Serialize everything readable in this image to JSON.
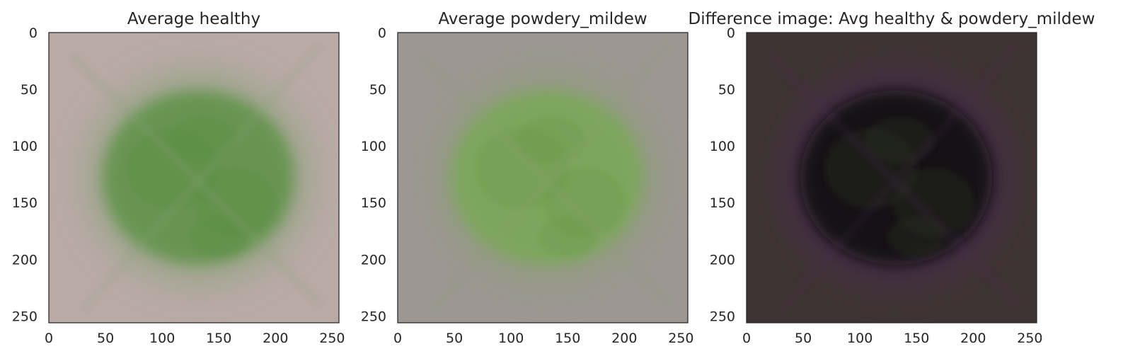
{
  "chart_data": [
    {
      "type": "image",
      "title": "Average healthy",
      "xlim": [
        0,
        256
      ],
      "ylim": [
        256,
        0
      ],
      "xticks": [
        0,
        50,
        100,
        150,
        200,
        250
      ],
      "yticks": [
        0,
        50,
        100,
        150,
        200,
        250
      ],
      "grid": false,
      "colors": {
        "background": "#b9aaa6",
        "leaf_center": "#5f9247",
        "leaf_edge": "#8aa27a",
        "blotch": "#5a8f45"
      }
    },
    {
      "type": "image",
      "title": "Average powdery_mildew",
      "xlim": [
        0,
        256
      ],
      "ylim": [
        256,
        0
      ],
      "xticks": [
        0,
        50,
        100,
        150,
        200,
        250
      ],
      "yticks": [
        0,
        50,
        100,
        150,
        200,
        250
      ],
      "grid": false,
      "colors": {
        "background": "#9c9792",
        "leaf_center": "#79a856",
        "leaf_edge": "#8e9e78",
        "blotch": "#6c9a4b"
      }
    },
    {
      "type": "image",
      "title": "Difference image: Avg healthy & powdery_mildew",
      "xlim": [
        0,
        256
      ],
      "ylim": [
        256,
        0
      ],
      "xticks": [
        0,
        50,
        100,
        150,
        200,
        250
      ],
      "yticks": [
        0,
        50,
        100,
        150,
        200,
        250
      ],
      "grid": false,
      "colors": {
        "background": "#3e3433",
        "leaf_center": "#0b0b0d",
        "leaf_edge": "#4a2c52",
        "blotch": "#2a3320"
      }
    }
  ]
}
